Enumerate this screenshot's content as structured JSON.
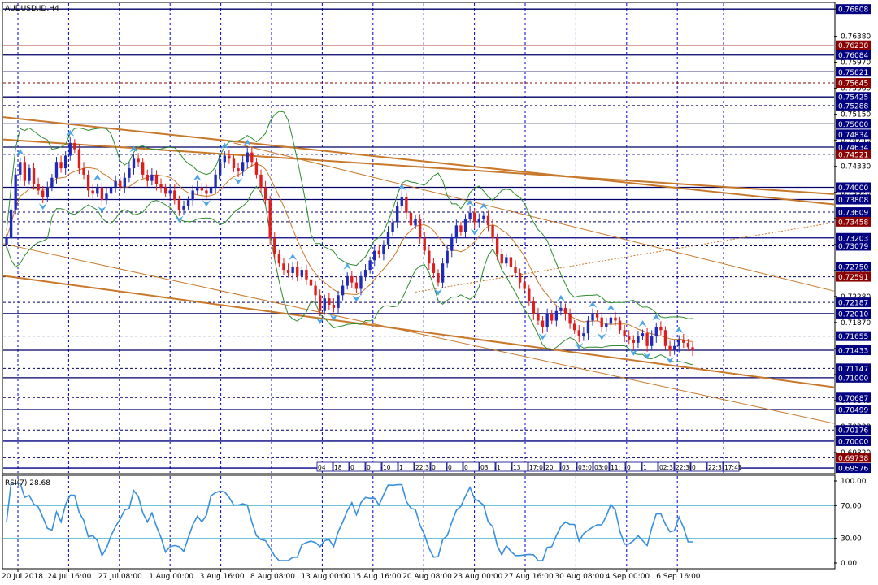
{
  "chart_data": {
    "type": "candlestick",
    "title": "AUDUSD.ID,H4",
    "symbol": "AUDUSD.ID",
    "timeframe": "H4",
    "colors": {
      "bull": "#1f2ab8",
      "bear": "#e01d1d",
      "grid": "#0000cc",
      "hline": "#000066",
      "trend": "#c8782a",
      "bands": "#2e8b2e",
      "fractal": "#4da6e8",
      "rsi": "#3a8fdc",
      "rsi_level": "#3bb0c9",
      "badge": "#000080",
      "badge_red": "#8b0000"
    },
    "price_axis": {
      "ylim": [
        0.695,
        0.769
      ],
      "labels": [
        "0.76808",
        "0.76380",
        "0.75970",
        "0.75560",
        "0.75150",
        "0.74740",
        "0.74330",
        "0.73920",
        "0.73510",
        "0.73100",
        "0.72690",
        "0.72280",
        "0.71870",
        "0.71460",
        "0.71050",
        "0.70640",
        "0.70230",
        "0.69820"
      ],
      "badges": [
        {
          "text": "0.76808",
          "value": 0.76808,
          "red": false
        },
        {
          "text": "0.76238",
          "value": 0.76238,
          "red": true
        },
        {
          "text": "0.76084",
          "value": 0.76084,
          "red": false
        },
        {
          "text": "0.75821",
          "value": 0.75821,
          "red": false
        },
        {
          "text": "0.75645",
          "value": 0.75645,
          "red": true
        },
        {
          "text": "0.75425",
          "value": 0.75425,
          "red": false
        },
        {
          "text": "0.75288",
          "value": 0.75288,
          "red": false
        },
        {
          "text": "0.75000",
          "value": 0.75,
          "red": false
        },
        {
          "text": "0.74834",
          "value": 0.74834,
          "red": false
        },
        {
          "text": "0.74634",
          "value": 0.74634,
          "red": false
        },
        {
          "text": "0.74521",
          "value": 0.74521,
          "red": true
        },
        {
          "text": "0.74000",
          "value": 0.74,
          "red": false
        },
        {
          "text": "0.73808",
          "value": 0.73808,
          "red": false
        },
        {
          "text": "0.73609",
          "value": 0.73609,
          "red": false
        },
        {
          "text": "0.73458",
          "value": 0.73458,
          "red": true
        },
        {
          "text": "0.73203",
          "value": 0.73203,
          "red": false
        },
        {
          "text": "0.73079",
          "value": 0.73079,
          "red": false
        },
        {
          "text": "0.72750",
          "value": 0.7275,
          "red": false
        },
        {
          "text": "0.72591",
          "value": 0.72591,
          "red": true
        },
        {
          "text": "0.72187",
          "value": 0.72187,
          "red": false
        },
        {
          "text": "0.72010",
          "value": 0.7201,
          "red": false
        },
        {
          "text": "0.71655",
          "value": 0.71655,
          "red": false
        },
        {
          "text": "0.71433",
          "value": 0.71433,
          "red": false
        },
        {
          "text": "0.71147",
          "value": 0.71147,
          "red": false
        },
        {
          "text": "0.71000",
          "value": 0.71,
          "red": false
        },
        {
          "text": "0.70687",
          "value": 0.70687,
          "red": false
        },
        {
          "text": "0.70499",
          "value": 0.70499,
          "red": false
        },
        {
          "text": "0.70176",
          "value": 0.70176,
          "red": false
        },
        {
          "text": "0.70000",
          "value": 0.7,
          "red": false
        },
        {
          "text": "0.69738",
          "value": 0.69738,
          "red": true
        },
        {
          "text": "0.69576",
          "value": 0.69576,
          "red": false
        }
      ]
    },
    "time_axis": {
      "labels": [
        "20 Jul 2018",
        "24 Jul 16:00",
        "27 Jul 08:00",
        "1 Aug 00:00",
        "3 Aug 16:00",
        "8 Aug 08:00",
        "13 Aug 00:00",
        "15 Aug 16:00",
        "20 Aug 08:00",
        "23 Aug 00:00",
        "27 Aug 16:00",
        "30 Aug 08:00",
        "4 Sep 00:00",
        "6 Sep 16:00"
      ]
    },
    "horizontal_levels": [
      {
        "value": 0.76808,
        "style": "solid",
        "color": "hline"
      },
      {
        "value": 0.76238,
        "style": "solid",
        "color": "badge_red"
      },
      {
        "value": 0.76084,
        "style": "solid",
        "color": "hline"
      },
      {
        "value": 0.75821,
        "style": "solid",
        "color": "hline"
      },
      {
        "value": 0.75645,
        "style": "dashed",
        "color": "badge_red"
      },
      {
        "value": 0.75425,
        "style": "solid",
        "color": "hline"
      },
      {
        "value": 0.75288,
        "style": "dashed",
        "color": "hline"
      },
      {
        "value": 0.75,
        "style": "solid",
        "color": "hline"
      },
      {
        "value": 0.74634,
        "style": "solid",
        "color": "hline"
      },
      {
        "value": 0.74521,
        "style": "dashed",
        "color": "hline"
      },
      {
        "value": 0.74,
        "style": "solid",
        "color": "hline"
      },
      {
        "value": 0.73808,
        "style": "solid",
        "color": "hline"
      },
      {
        "value": 0.73609,
        "style": "dashed",
        "color": "hline"
      },
      {
        "value": 0.73458,
        "style": "dashed",
        "color": "hline"
      },
      {
        "value": 0.73203,
        "style": "solid",
        "color": "badge"
      },
      {
        "value": 0.73079,
        "style": "dashed",
        "color": "hline"
      },
      {
        "value": 0.72591,
        "style": "dashed",
        "color": "hline"
      },
      {
        "value": 0.72187,
        "style": "dashed",
        "color": "hline"
      },
      {
        "value": 0.7201,
        "style": "solid",
        "color": "hline"
      },
      {
        "value": 0.71655,
        "style": "dashed",
        "color": "hline"
      },
      {
        "value": 0.71433,
        "style": "solid",
        "color": "hline"
      },
      {
        "value": 0.71147,
        "style": "dashed",
        "color": "hline"
      },
      {
        "value": 0.71,
        "style": "solid",
        "color": "hline"
      },
      {
        "value": 0.70687,
        "style": "dashed",
        "color": "hline"
      },
      {
        "value": 0.70499,
        "style": "solid",
        "color": "hline"
      },
      {
        "value": 0.70176,
        "style": "dashed",
        "color": "hline"
      },
      {
        "value": 0.7,
        "style": "solid",
        "color": "badge"
      },
      {
        "value": 0.69738,
        "style": "dashed",
        "color": "hline"
      },
      {
        "value": 0.69576,
        "style": "solid",
        "color": "badge"
      }
    ],
    "trendlines": [
      {
        "i0": 0,
        "p0": 0.751,
        "i1": 153,
        "p1": 0.7395,
        "w": 2
      },
      {
        "i0": 0,
        "p0": 0.7475,
        "i1": 153,
        "p1": 0.7403,
        "w": 2
      },
      {
        "i0": 0,
        "p0": 0.726,
        "i1": 153,
        "p1": 0.7113,
        "w": 2
      },
      {
        "i0": 0,
        "p0": 0.731,
        "i1": 153,
        "p1": 0.7073,
        "w": 1
      },
      {
        "i0": 50,
        "p0": 0.747,
        "i1": 153,
        "p1": 0.7288,
        "w": 1
      },
      {
        "i0": 90,
        "p0": 0.7235,
        "i1": 153,
        "p1": 0.731,
        "w": 1,
        "dashed": true
      }
    ],
    "close": [
      0.732,
      0.7365,
      0.742,
      0.744,
      0.741,
      0.743,
      0.7405,
      0.7395,
      0.7385,
      0.74,
      0.7415,
      0.744,
      0.743,
      0.745,
      0.747,
      0.746,
      0.743,
      0.742,
      0.7395,
      0.739,
      0.74,
      0.738,
      0.739,
      0.74,
      0.741,
      0.74,
      0.7415,
      0.743,
      0.7445,
      0.744,
      0.742,
      0.741,
      0.742,
      0.7405,
      0.74,
      0.739,
      0.7395,
      0.738,
      0.7365,
      0.737,
      0.738,
      0.7395,
      0.74,
      0.7395,
      0.739,
      0.74,
      0.742,
      0.744,
      0.745,
      0.7445,
      0.743,
      0.7425,
      0.744,
      0.7455,
      0.744,
      0.742,
      0.74,
      0.738,
      0.732,
      0.7295,
      0.728,
      0.727,
      0.7265,
      0.7275,
      0.726,
      0.727,
      0.7255,
      0.7245,
      0.723,
      0.7205,
      0.7225,
      0.7215,
      0.721,
      0.723,
      0.7245,
      0.726,
      0.725,
      0.724,
      0.726,
      0.727,
      0.7285,
      0.73,
      0.7295,
      0.731,
      0.733,
      0.7345,
      0.737,
      0.7385,
      0.736,
      0.734,
      0.735,
      0.732,
      0.73,
      0.728,
      0.7265,
      0.725,
      0.728,
      0.73,
      0.732,
      0.734,
      0.733,
      0.735,
      0.736,
      0.7345,
      0.735,
      0.7355,
      0.734,
      0.732,
      0.7295,
      0.728,
      0.729,
      0.7275,
      0.7265,
      0.725,
      0.724,
      0.722,
      0.72,
      0.719,
      0.718,
      0.72,
      0.719,
      0.7205,
      0.721,
      0.72,
      0.7185,
      0.7175,
      0.7165,
      0.717,
      0.719,
      0.72,
      0.7195,
      0.718,
      0.7185,
      0.7195,
      0.719,
      0.7175,
      0.7165,
      0.716,
      0.7155,
      0.7165,
      0.717,
      0.715,
      0.7165,
      0.718,
      0.7175,
      0.715,
      0.7143,
      0.715,
      0.716,
      0.7155,
      0.7148,
      0.7143
    ]
  },
  "rsi": {
    "label": "RSI(7) 28.68",
    "levels": [
      "100.00",
      "70.00",
      "30.00",
      "0.00"
    ]
  },
  "strip_labels": [
    "04",
    "18",
    "0",
    "0",
    "10",
    "1",
    "22:3",
    "0",
    "0",
    "0",
    "03",
    "1",
    "13",
    "17:0",
    "20",
    "03",
    "03:0",
    "03:0",
    "11:",
    "0",
    "1",
    "02:3",
    "22:30",
    "0",
    "22:3",
    "17:45"
  ]
}
